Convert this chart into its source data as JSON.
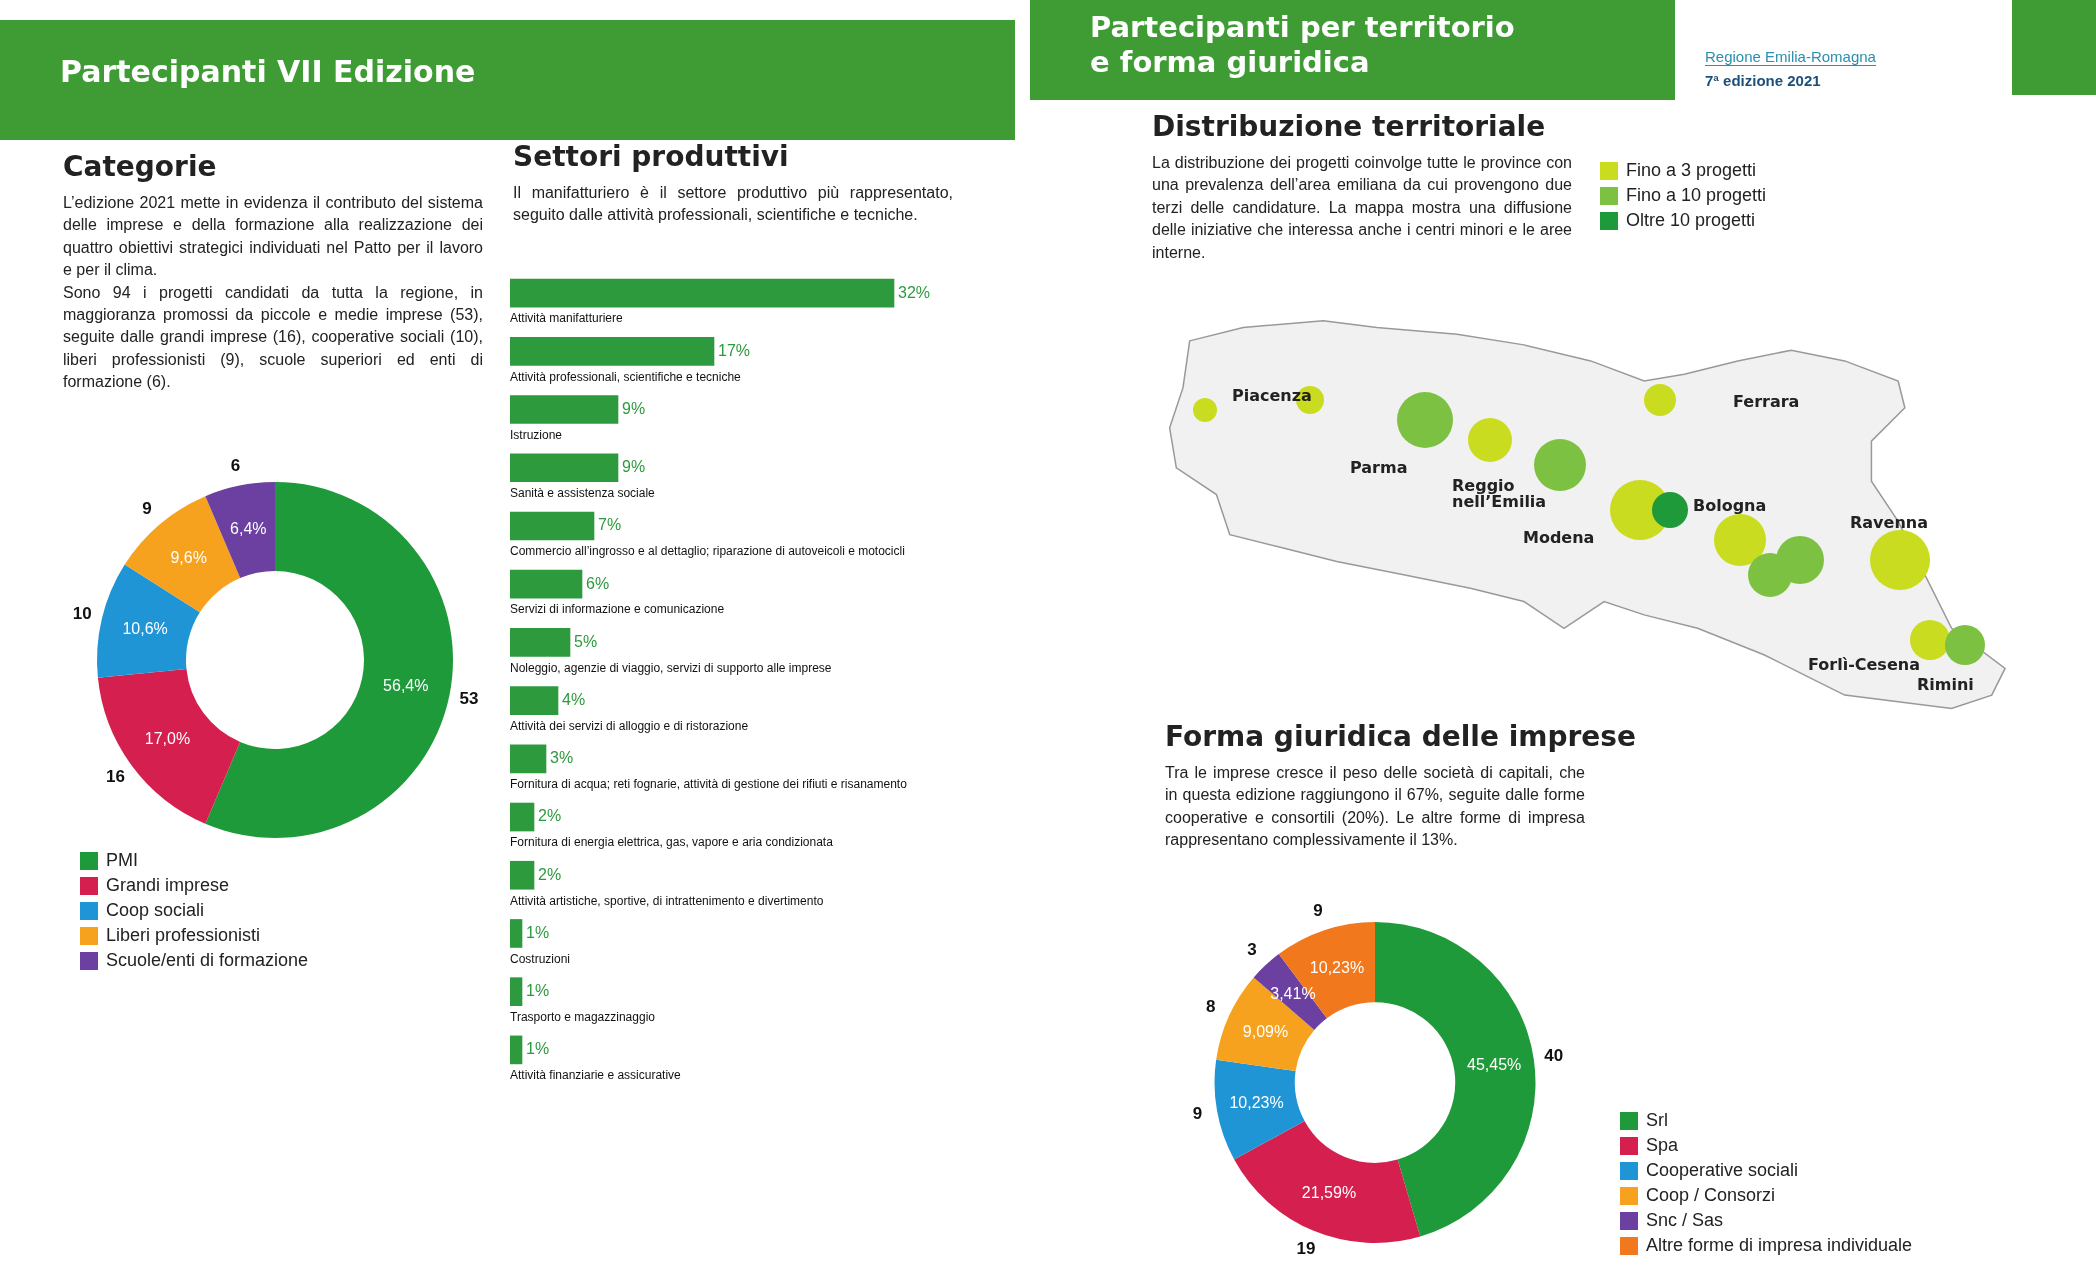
{
  "chart_data": [
    {
      "type": "donut",
      "title": "Categorie",
      "subtitle": "L’edizione 2021 mette in evidenza il contributo del sistema delle imprese e della formazione alla realizzazione dei quattro obiettivi strategici individuati nel Patto per il lavoro e per il clima.\nSono 94 i progetti candidati da tutta la regione, in maggioranza promossi da piccole e medie imprese (53), seguite dalle grandi imprese (16), cooperative sociali (10), liberi professionisti (9), scuole superiori ed enti di formazione (6).",
      "annotations": [
        "Partecipanti VII Edizione",
        "53",
        "16",
        "10",
        "9",
        "6"
      ],
      "categories": [
        "PMI",
        "Grandi imprese",
        "Coop sociali",
        "Liberi professionisti",
        "Scuole/enti di formazione"
      ],
      "values": [
        56.4,
        17.0,
        10.6,
        9.6,
        6.4
      ],
      "value_labels": [
        "56,4%",
        "17,0%",
        "10,6%",
        "9,6%",
        "6,4%"
      ],
      "colors": [
        "#1f9a3a",
        "#d41f4f",
        "#1f95d6",
        "#f6a21e",
        "#6b40a0"
      ],
      "legend": "bottom left"
    },
    {
      "type": "bar",
      "orientation": "horizontal",
      "title": "Settori produttivi",
      "subtitle": "Il manifatturiero è il settore produttivo più rappresentato, seguito dalle attività professionali, scientifiche e tecniche.",
      "categories": [
        "Attività manifatturiere",
        "Attività professionali, scientifiche e tecniche",
        "Istruzione",
        "Sanità e assistenza sociale",
        "Commercio all’ingrosso e al dettaglio; riparazione di autoveicoli e motocicli",
        "Servizi di informazione e comunicazione",
        "Noleggio, agenzie di viaggio, servizi di supporto alle imprese",
        "Attività dei servizi di alloggio e di ristorazione",
        "Fornitura di acqua; reti fognarie, attività di gestione dei rifiuti e risanamento",
        "Fornitura di energia elettrica, gas, vapore e aria condizionata",
        "Attività artistiche, sportive, di intrattenimento e divertimento",
        "Costruzioni",
        "Trasporto e magazzinaggio",
        "Attività finanziarie e assicurative"
      ],
      "values": [
        32,
        17,
        9,
        9,
        7,
        6,
        5,
        4,
        3,
        2,
        2,
        1,
        1,
        1
      ],
      "value_labels": [
        "32%",
        "17%",
        "9%",
        "9%",
        "7%",
        "6%",
        "5%",
        "4%",
        "3%",
        "2%",
        "2%",
        "1%",
        "1%",
        "1%"
      ],
      "color": "#2e9a3e",
      "tick_labels": false
    },
    {
      "type": "other",
      "title": "Distribuzione territoriale",
      "subtitle": "La distribuzione dei progetti coinvolge tutte le province con una prevalenza dell’area emiliana da cui provengono due terzi delle candidature. La mappa mostra una diffusione delle iniziative che interessa anche i centri minori e le aree interne.",
      "categories": [
        "Fino a 3 progetti",
        "Fino a 10 progetti",
        "Oltre 10 progetti"
      ],
      "colors": [
        "#c9dc1f",
        "#7cc142",
        "#1f9a3a"
      ],
      "annotations": [
        "Partecipanti per territorio\ne forma giuridica",
        "Regione Emilia-Romagna",
        "7ª edizione 2021",
        "Piacenza",
        "Parma",
        "Reggio\nnell’Emilia",
        "Modena",
        "Bologna",
        "Ferrara",
        "Ravenna",
        "Forlì-Cesena",
        "Rimini"
      ]
    },
    {
      "type": "donut",
      "title": "Forma giuridica delle imprese",
      "subtitle": "Tra le imprese cresce il peso delle società di capitali, che in questa edizione raggiungono il 67%, seguite dalle forme cooperative e consortili (20%). Le altre forme di impresa rappresentano complessivamente il 13%.",
      "categories": [
        "Srl",
        "Spa",
        "Cooperative sociali",
        "Coop / Consorzi",
        "Snc / Sas",
        "Altre forme di impresa individuale"
      ],
      "values": [
        45.45,
        21.59,
        10.23,
        9.09,
        3.41,
        10.23
      ],
      "annotations": [
        "40",
        "19",
        "9",
        "8",
        "3",
        "9"
      ],
      "value_labels": [
        "45,45%",
        "21,59%",
        "10,23%",
        "9,09%",
        "3,41%",
        "10,23%"
      ],
      "colors": [
        "#1f9a3a",
        "#d41f4f",
        "#1f95d6",
        "#f6a21e",
        "#6b40a0",
        "#f2781e"
      ],
      "legend": "bottom right"
    }
  ]
}
